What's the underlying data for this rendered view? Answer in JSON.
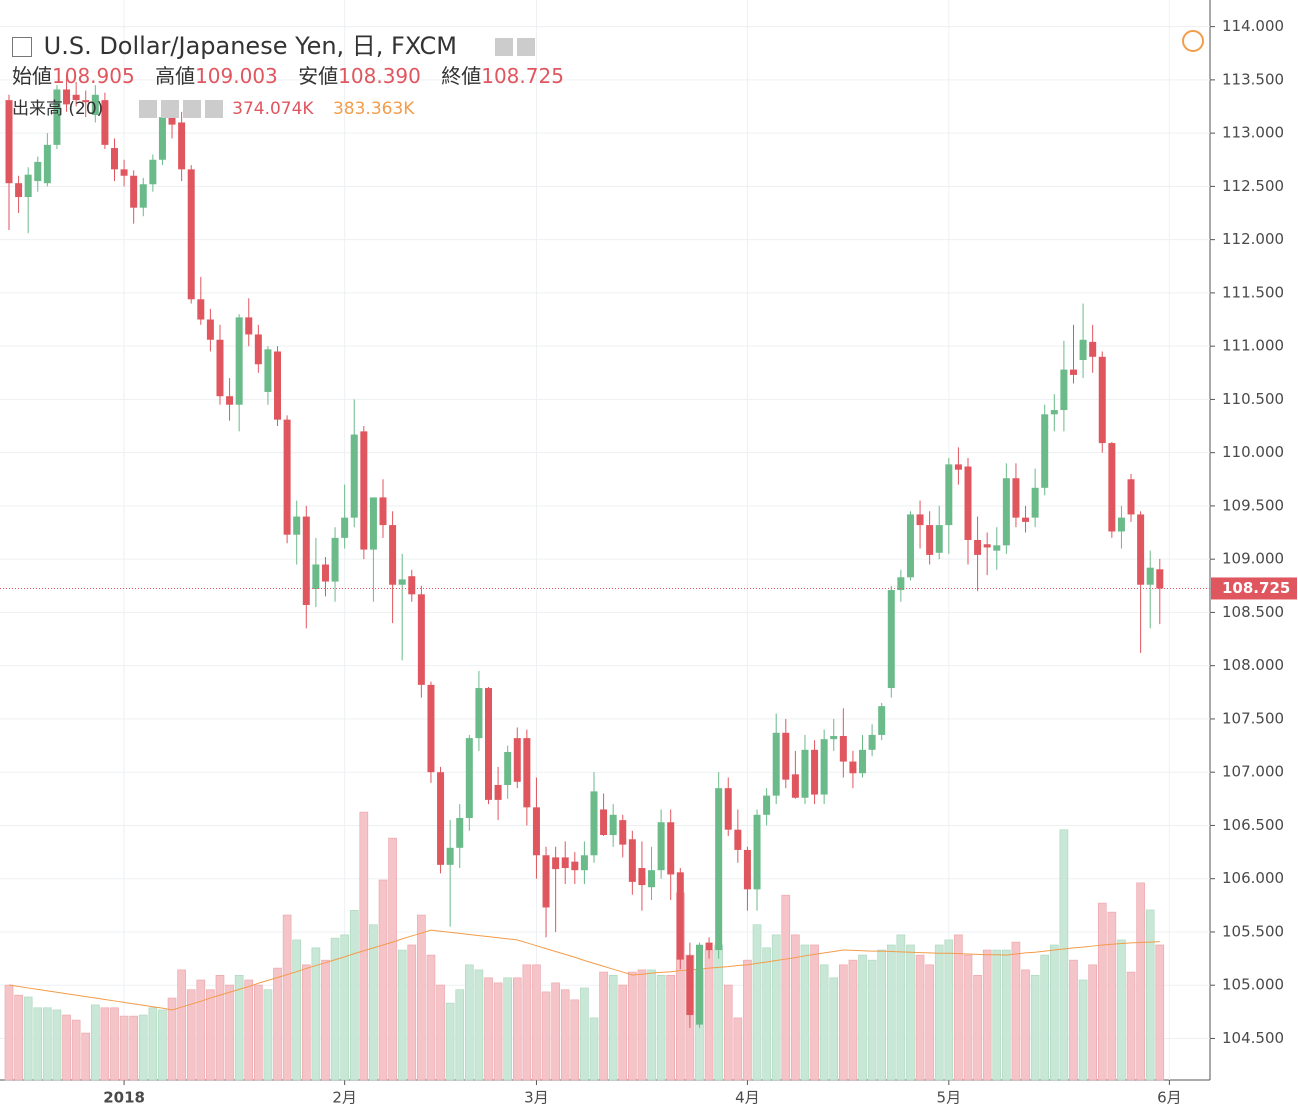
{
  "header": {
    "title": "U.S. Dollar/Japanese Yen, 日, FXCM",
    "open_label": "始値",
    "open": "108.905",
    "high_label": "高値",
    "high": "109.003",
    "low_label": "安値",
    "low": "108.390",
    "close_label": "終値",
    "close": "108.725",
    "volume_label": "出来高 (20)",
    "volume": "374.074K",
    "volume_ma": "383.363K"
  },
  "chart_data": {
    "type": "candlestick",
    "up_color": "#6aba8a",
    "down_color": "#e0565f",
    "volume_up_color": "#c9e7d6",
    "volume_down_color": "#f5c4c8",
    "ma_color": "#f39c4a",
    "grid": true,
    "ylim": [
      104.11,
      114.25
    ],
    "yticks": [
      {
        "value": 104.5,
        "label": "104.500"
      },
      {
        "value": 105,
        "label": "105.000"
      },
      {
        "value": 105.5,
        "label": "105.500"
      },
      {
        "value": 106,
        "label": "106.000"
      },
      {
        "value": 106.5,
        "label": "106.500"
      },
      {
        "value": 107,
        "label": "107.000"
      },
      {
        "value": 107.5,
        "label": "107.500"
      },
      {
        "value": 108,
        "label": "108.000"
      },
      {
        "value": 108.5,
        "label": "108.500"
      },
      {
        "value": 109,
        "label": "109.000"
      },
      {
        "value": 109.5,
        "label": "109.500"
      },
      {
        "value": 110,
        "label": "110.000"
      },
      {
        "value": 110.5,
        "label": "110.500"
      },
      {
        "value": 111,
        "label": "111.000"
      },
      {
        "value": 111.5,
        "label": "111.500"
      },
      {
        "value": 112,
        "label": "112.000"
      },
      {
        "value": 112.5,
        "label": "112.500"
      },
      {
        "value": 113,
        "label": "113.000"
      },
      {
        "value": 113.5,
        "label": "113.500"
      },
      {
        "value": 114,
        "label": "114.000"
      }
    ],
    "last_price": {
      "value": 108.725,
      "label": "108.725"
    },
    "categories": [
      null,
      null,
      null,
      null,
      null,
      null,
      null,
      null,
      null,
      null,
      null,
      null,
      "2018",
      null,
      null,
      null,
      null,
      null,
      null,
      null,
      null,
      null,
      null,
      null,
      null,
      null,
      null,
      null,
      null,
      null,
      null,
      null,
      null,
      null,
      null,
      "2月",
      null,
      null,
      null,
      null,
      null,
      null,
      null,
      null,
      null,
      null,
      null,
      null,
      null,
      null,
      null,
      null,
      null,
      null,
      null,
      "3月",
      null,
      null,
      null,
      null,
      null,
      null,
      null,
      null,
      null,
      null,
      null,
      null,
      null,
      null,
      null,
      null,
      null,
      null,
      null,
      null,
      null,
      "4月",
      null,
      null,
      null,
      null,
      null,
      null,
      null,
      null,
      null,
      null,
      null,
      null,
      null,
      null,
      null,
      null,
      null,
      null,
      null,
      null,
      "5月",
      null,
      null,
      null,
      null,
      null,
      null,
      null,
      null,
      null,
      null,
      null,
      null,
      null,
      null,
      null,
      null,
      null,
      null,
      null,
      null,
      null,
      null,
      "6月"
    ],
    "ohlc": [
      [
        113.31,
        113.36,
        112.09,
        112.53
      ],
      [
        112.53,
        112.6,
        112.25,
        112.4
      ],
      [
        112.4,
        112.68,
        112.06,
        112.61
      ],
      [
        112.55,
        112.78,
        112.45,
        112.73
      ],
      [
        112.53,
        113.0,
        112.5,
        112.89
      ],
      [
        112.89,
        113.45,
        112.85,
        113.41
      ],
      [
        113.41,
        113.55,
        113.2,
        113.27
      ],
      [
        113.36,
        113.48,
        113.25,
        113.31
      ],
      [
        113.31,
        113.4,
        113.15,
        113.29
      ],
      [
        113.17,
        113.45,
        113.1,
        113.36
      ],
      [
        113.31,
        113.38,
        112.85,
        112.89
      ],
      [
        112.86,
        112.95,
        112.55,
        112.66
      ],
      [
        112.66,
        112.75,
        112.5,
        112.6
      ],
      [
        112.6,
        112.65,
        112.15,
        112.3
      ],
      [
        112.3,
        112.58,
        112.22,
        112.52
      ],
      [
        112.52,
        112.8,
        112.45,
        112.75
      ],
      [
        112.75,
        113.3,
        112.7,
        113.15
      ],
      [
        113.15,
        113.3,
        112.95,
        113.08
      ],
      [
        113.1,
        113.2,
        112.55,
        112.66
      ],
      [
        112.66,
        112.7,
        111.4,
        111.44
      ],
      [
        111.44,
        111.65,
        111.2,
        111.25
      ],
      [
        111.25,
        111.35,
        110.95,
        111.06
      ],
      [
        111.06,
        111.2,
        110.45,
        110.53
      ],
      [
        110.53,
        110.7,
        110.3,
        110.45
      ],
      [
        110.45,
        111.3,
        110.2,
        111.27
      ],
      [
        111.27,
        111.45,
        111.0,
        111.11
      ],
      [
        111.11,
        111.2,
        110.75,
        110.83
      ],
      [
        110.57,
        111.0,
        110.45,
        110.97
      ],
      [
        110.95,
        111.0,
        110.25,
        110.31
      ],
      [
        110.31,
        110.35,
        109.15,
        109.23
      ],
      [
        109.23,
        109.55,
        108.95,
        109.4
      ],
      [
        109.4,
        109.5,
        108.35,
        108.57
      ],
      [
        108.72,
        109.2,
        108.55,
        108.95
      ],
      [
        108.95,
        109.02,
        108.65,
        108.79
      ],
      [
        108.79,
        109.3,
        108.6,
        109.2
      ],
      [
        109.2,
        109.7,
        109.1,
        109.39
      ],
      [
        109.39,
        110.5,
        109.3,
        110.17
      ],
      [
        110.2,
        110.25,
        109.0,
        109.09
      ],
      [
        109.09,
        109.55,
        108.6,
        109.58
      ],
      [
        109.58,
        109.75,
        109.2,
        109.32
      ],
      [
        109.32,
        109.45,
        108.4,
        108.76
      ],
      [
        108.76,
        109.05,
        108.05,
        108.81
      ],
      [
        108.84,
        108.9,
        108.6,
        108.67
      ],
      [
        108.67,
        108.75,
        107.7,
        107.82
      ],
      [
        107.82,
        107.85,
        106.9,
        107.0
      ],
      [
        107.0,
        107.05,
        106.05,
        106.13
      ],
      [
        106.13,
        106.55,
        105.55,
        106.29
      ],
      [
        106.29,
        106.7,
        106.1,
        106.57
      ],
      [
        106.57,
        107.35,
        106.45,
        107.32
      ],
      [
        107.32,
        107.95,
        107.2,
        107.79
      ],
      [
        107.79,
        107.8,
        106.7,
        106.74
      ],
      [
        106.88,
        107.05,
        106.55,
        106.74
      ],
      [
        106.88,
        107.25,
        106.75,
        107.19
      ],
      [
        107.32,
        107.42,
        106.85,
        106.91
      ],
      [
        107.32,
        107.4,
        106.5,
        106.67
      ],
      [
        106.67,
        106.95,
        106.0,
        106.22
      ],
      [
        106.22,
        106.3,
        105.45,
        105.73
      ],
      [
        106.2,
        106.3,
        105.5,
        106.09
      ],
      [
        106.2,
        106.35,
        105.95,
        106.1
      ],
      [
        106.16,
        106.25,
        105.95,
        106.08
      ],
      [
        106.08,
        106.35,
        105.95,
        106.22
      ],
      [
        106.22,
        107.0,
        106.15,
        106.82
      ],
      [
        106.65,
        106.8,
        106.4,
        106.41
      ],
      [
        106.41,
        106.7,
        106.3,
        106.6
      ],
      [
        106.55,
        106.6,
        106.2,
        106.32
      ],
      [
        106.37,
        106.45,
        105.85,
        105.97
      ],
      [
        106.1,
        106.35,
        105.7,
        105.94
      ],
      [
        105.92,
        106.3,
        105.8,
        106.08
      ],
      [
        106.08,
        106.65,
        106.0,
        106.53
      ],
      [
        106.53,
        106.65,
        105.8,
        106.04
      ],
      [
        106.06,
        106.1,
        105.15,
        105.24
      ],
      [
        105.28,
        105.4,
        104.6,
        104.72
      ],
      [
        104.63,
        105.4,
        104.6,
        105.38
      ],
      [
        105.4,
        105.45,
        105.25,
        105.33
      ],
      [
        105.33,
        107.0,
        105.25,
        106.85
      ],
      [
        106.85,
        106.95,
        106.4,
        106.46
      ],
      [
        106.46,
        106.65,
        106.15,
        106.27
      ],
      [
        106.27,
        106.3,
        105.7,
        105.9
      ],
      [
        105.9,
        106.65,
        105.7,
        106.6
      ],
      [
        106.6,
        106.85,
        106.5,
        106.78
      ],
      [
        106.78,
        107.55,
        106.7,
        107.37
      ],
      [
        107.37,
        107.5,
        106.85,
        106.93
      ],
      [
        106.98,
        107.2,
        106.75,
        106.76
      ],
      [
        106.76,
        107.35,
        106.7,
        107.21
      ],
      [
        107.21,
        107.3,
        106.7,
        106.79
      ],
      [
        106.79,
        107.4,
        106.7,
        107.31
      ],
      [
        107.31,
        107.5,
        107.2,
        107.34
      ],
      [
        107.34,
        107.6,
        106.95,
        107.1
      ],
      [
        107.1,
        107.2,
        106.85,
        106.99
      ],
      [
        106.99,
        107.35,
        106.95,
        107.21
      ],
      [
        107.21,
        107.45,
        107.15,
        107.35
      ],
      [
        107.35,
        107.65,
        107.3,
        107.62
      ],
      [
        107.79,
        108.75,
        107.7,
        108.71
      ],
      [
        108.71,
        108.9,
        108.6,
        108.83
      ],
      [
        108.83,
        109.45,
        108.8,
        109.42
      ],
      [
        109.42,
        109.55,
        109.1,
        109.32
      ],
      [
        109.32,
        109.45,
        108.95,
        109.04
      ],
      [
        109.06,
        109.5,
        109.0,
        109.32
      ],
      [
        109.32,
        109.95,
        109.05,
        109.89
      ],
      [
        109.89,
        110.05,
        109.7,
        109.84
      ],
      [
        109.87,
        109.95,
        108.95,
        109.18
      ],
      [
        109.18,
        109.4,
        108.7,
        109.04
      ],
      [
        109.14,
        109.25,
        108.85,
        109.11
      ],
      [
        109.08,
        109.3,
        108.9,
        109.13
      ],
      [
        109.13,
        109.9,
        109.05,
        109.76
      ],
      [
        109.76,
        109.9,
        109.3,
        109.39
      ],
      [
        109.39,
        109.5,
        109.25,
        109.35
      ],
      [
        109.39,
        109.85,
        109.3,
        109.67
      ],
      [
        109.67,
        110.45,
        109.6,
        110.36
      ],
      [
        110.36,
        110.55,
        110.2,
        110.4
      ],
      [
        110.4,
        111.05,
        110.2,
        110.78
      ],
      [
        110.78,
        111.2,
        110.65,
        110.73
      ],
      [
        110.87,
        111.4,
        110.7,
        111.06
      ],
      [
        111.04,
        111.2,
        110.75,
        110.9
      ],
      [
        110.9,
        110.95,
        110.0,
        110.09
      ],
      [
        110.09,
        110.1,
        109.2,
        109.26
      ],
      [
        109.26,
        109.5,
        109.1,
        109.39
      ],
      [
        109.75,
        109.8,
        109.35,
        109.42
      ],
      [
        109.42,
        109.45,
        108.12,
        108.76
      ],
      [
        108.76,
        109.08,
        108.35,
        108.92
      ],
      [
        108.905,
        109.003,
        108.39,
        108.725
      ],
      null
    ],
    "volume": [
      263,
      235,
      230,
      200,
      200,
      194,
      180,
      166,
      130,
      208,
      200,
      200,
      177,
      177,
      180,
      200,
      194,
      227,
      305,
      250,
      277,
      250,
      290,
      263,
      290,
      277,
      263,
      250,
      310,
      457,
      388,
      319,
      366,
      332,
      393,
      402,
      470,
      742,
      430,
      554,
      670,
      360,
      374,
      457,
      346,
      263,
      213,
      250,
      319,
      305,
      283,
      269,
      283,
      283,
      319,
      319,
      244,
      269,
      250,
      222,
      255,
      172,
      299,
      290,
      263,
      299,
      305,
      305,
      290,
      290,
      518,
      346,
      305,
      360,
      374,
      263,
      172,
      332,
      430,
      366,
      402,
      512,
      402,
      374,
      374,
      319,
      283,
      319,
      332,
      346,
      332,
      360,
      374,
      402,
      374,
      346,
      319,
      374,
      388,
      402,
      346,
      290,
      360,
      360,
      360,
      382,
      305,
      290,
      346,
      374,
      693,
      332,
      277,
      319,
      490,
      465,
      388,
      299,
      546,
      471,
      374.074,
      null
    ],
    "volume_ma": [
      263,
      259,
      255,
      251,
      247,
      243,
      239,
      235,
      231,
      227,
      223,
      219,
      215,
      211,
      207,
      203,
      199,
      194,
      202,
      210,
      218,
      227,
      235,
      243,
      251,
      259,
      268,
      276,
      284,
      292,
      300,
      309,
      317,
      325,
      333,
      341,
      350,
      358,
      366,
      374,
      382,
      391,
      399,
      407,
      415,
      412,
      409,
      406,
      403,
      400,
      397,
      394,
      391,
      388,
      380,
      372,
      364,
      356,
      348,
      340,
      331,
      323,
      315,
      307,
      299,
      291,
      293,
      296,
      298,
      300,
      303,
      305,
      307,
      310,
      312,
      314,
      317,
      319,
      323,
      327,
      331,
      335,
      339,
      344,
      348,
      352,
      356,
      360,
      359,
      358,
      357,
      357,
      356,
      355,
      354,
      353,
      352,
      351,
      351,
      350,
      349,
      348,
      347,
      347,
      346,
      349,
      352,
      354,
      357,
      360,
      363,
      366,
      368,
      371,
      374,
      376,
      378,
      380,
      381,
      382,
      383.363,
      null
    ]
  }
}
